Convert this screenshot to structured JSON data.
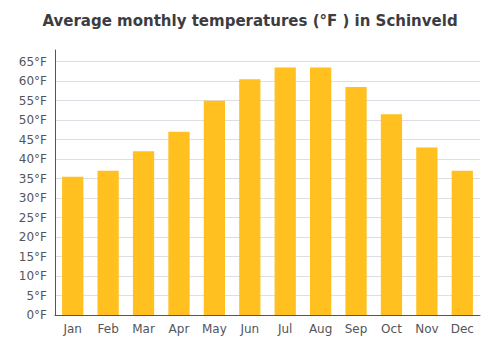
{
  "chart_data": {
    "type": "bar",
    "title": "Average monthly temperatures (°F ) in Schinveld",
    "categories": [
      "Jan",
      "Feb",
      "Mar",
      "Apr",
      "May",
      "Jun",
      "Jul",
      "Aug",
      "Sep",
      "Oct",
      "Nov",
      "Dec"
    ],
    "values": [
      35.5,
      37,
      42,
      47,
      55,
      60.5,
      63.5,
      63.5,
      58.5,
      51.5,
      43,
      37
    ],
    "color": "#FFC020",
    "ylim": [
      0,
      68
    ],
    "yticks": [
      {
        "value": 0,
        "label": "0°F"
      },
      {
        "value": 5,
        "label": "5°F"
      },
      {
        "value": 10,
        "label": "10°F"
      },
      {
        "value": 15,
        "label": "15°F"
      },
      {
        "value": 20,
        "label": "20°F"
      },
      {
        "value": 25,
        "label": "25°F"
      },
      {
        "value": 30,
        "label": "30°F"
      },
      {
        "value": 35,
        "label": "35°F"
      },
      {
        "value": 40,
        "label": "40°F"
      },
      {
        "value": 45,
        "label": "45°F"
      },
      {
        "value": 50,
        "label": "50°F"
      },
      {
        "value": 55,
        "label": "55°F"
      },
      {
        "value": 60,
        "label": "60°F"
      },
      {
        "value": 65,
        "label": "65°F"
      }
    ],
    "grid": true
  }
}
